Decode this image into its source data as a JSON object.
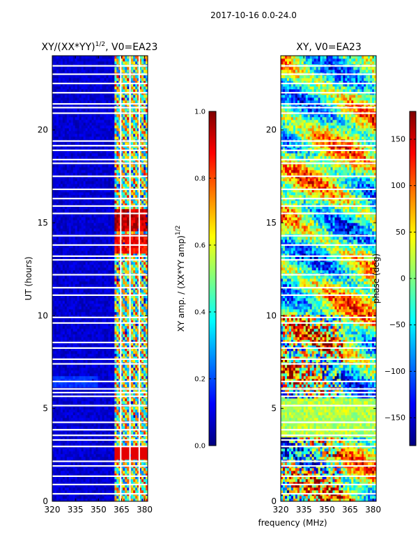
{
  "suptitle": "2017-10-16 0.0-24.0",
  "xlabel_shared": "frequency (MHz)",
  "colors": {
    "jet_stops": [
      "#00007f",
      "#0000ff",
      "#007fff",
      "#00ffff",
      "#7fff7f",
      "#ffff00",
      "#ff7f00",
      "#ff0000",
      "#7f0000"
    ],
    "axis": "#000000",
    "background": "#ffffff"
  },
  "chart_data": [
    {
      "type": "heatmap",
      "title_main": "XY/(XX*YY)",
      "title_sup": "1/2",
      "title_tail": ", V0=EA23",
      "ylabel": "UT (hours)",
      "xlim": [
        320,
        382
      ],
      "ylim": [
        0,
        24
      ],
      "xticks": [
        320,
        335,
        350,
        365,
        380
      ],
      "yticks": [
        0,
        5,
        10,
        15,
        20
      ],
      "quantity": "amplitude_ratio",
      "colorbar": {
        "label_main": "XY amp. / (XX*YY amp)",
        "label_sup": "1/2",
        "range": [
          0.0,
          1.0
        ],
        "ticks": [
          "0.0",
          "0.2",
          "0.4",
          "0.6",
          "0.8",
          "1.0"
        ],
        "tick_values": [
          0.0,
          0.2,
          0.4,
          0.6,
          0.8,
          1.0
        ]
      }
    },
    {
      "type": "heatmap",
      "title_main": "XY, V0=EA23",
      "ylabel": "",
      "xlim": [
        320,
        382
      ],
      "ylim": [
        0,
        24
      ],
      "xticks": [
        320,
        335,
        350,
        365,
        380
      ],
      "yticks": [
        0,
        5,
        10,
        15,
        20
      ],
      "quantity": "phase",
      "colorbar": {
        "label_main": "phase (deg)",
        "range": [
          -180,
          180
        ],
        "ticks": [
          "−150",
          "−100",
          "−50",
          "0",
          "50",
          "100",
          "150"
        ],
        "tick_values": [
          -150,
          -100,
          -50,
          0,
          50,
          100,
          150
        ]
      }
    }
  ],
  "flagged_hours": [
    0.4,
    0.9,
    1.35,
    1.9,
    2.15,
    2.95,
    3.3,
    3.55,
    3.85,
    4.25,
    5.15,
    5.65,
    5.85,
    6.05,
    6.45,
    7.4,
    7.65,
    8.25,
    8.55,
    9.6,
    9.9,
    11.1,
    11.5,
    12.2,
    13.0,
    13.2,
    13.8,
    14.3,
    15.5,
    15.9,
    16.3,
    16.8,
    17.5,
    18.2,
    18.4,
    18.9,
    19.15,
    19.4,
    20.9,
    21.2,
    21.4,
    22.0,
    22.5,
    23.0,
    23.45
  ],
  "flagged_channels_mhz": [
    364.5,
    370.5,
    376.5
  ]
}
